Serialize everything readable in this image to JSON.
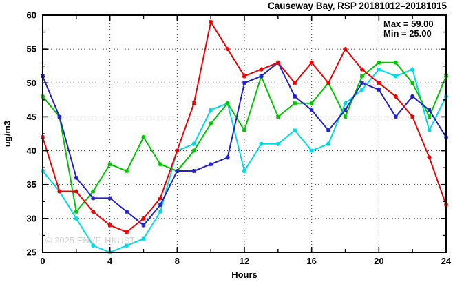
{
  "title": "Causeway Bay, RSP 20181012–20181015",
  "annotations": {
    "max_label": "Max = 59.00",
    "min_label": "Min = 25.00"
  },
  "watermark": "© 2025 ENVF, HKUST",
  "chart_data": {
    "type": "line",
    "title": "Causeway Bay, RSP 20181012–20181015",
    "xlabel": "Hours",
    "ylabel": "ug/m3",
    "xlim": [
      0,
      24
    ],
    "ylim": [
      25,
      60
    ],
    "x_major_ticks": [
      0,
      4,
      8,
      12,
      16,
      20,
      24
    ],
    "x_minor_ticks": [
      2,
      6,
      10,
      14,
      18,
      22
    ],
    "y_major_ticks": [
      25,
      30,
      35,
      40,
      45,
      50,
      55,
      60
    ],
    "y_minor_ticks": [
      27.5,
      32.5,
      37.5,
      42.5,
      47.5,
      52.5,
      57.5
    ],
    "x_gridlines": [
      4,
      8,
      12,
      16,
      20
    ],
    "y_gridlines": [
      30,
      35,
      40,
      45,
      50,
      55
    ],
    "grid": true,
    "legend_position": "top-right-inside",
    "stat_max": 59.0,
    "stat_min": 25.0,
    "x": [
      0,
      1,
      2,
      3,
      4,
      5,
      6,
      7,
      8,
      9,
      10,
      11,
      12,
      13,
      14,
      15,
      16,
      17,
      18,
      19,
      20,
      21,
      22,
      23,
      24
    ],
    "series": [
      {
        "name": "series-cyan",
        "color": "#00d9e8",
        "values": [
          37,
          34,
          30,
          26,
          25,
          26,
          27,
          31,
          40,
          41,
          46,
          47,
          37,
          41,
          41,
          43,
          40,
          41,
          47,
          49,
          52,
          51,
          52,
          43,
          48
        ]
      },
      {
        "name": "series-green",
        "color": "#00c400",
        "values": [
          48,
          45,
          31,
          34,
          38,
          37,
          42,
          38,
          37,
          40,
          44,
          47,
          43,
          51,
          45,
          47,
          47,
          50,
          45,
          51,
          53,
          53,
          50,
          45,
          51
        ]
      },
      {
        "name": "series-blue",
        "color": "#2222cc",
        "values": [
          51,
          45,
          36,
          33,
          33,
          31,
          29,
          32,
          37,
          37,
          38,
          39,
          50,
          51,
          53,
          48,
          46,
          43,
          46,
          50,
          49,
          45,
          48,
          46,
          42
        ]
      },
      {
        "name": "series-red",
        "color": "#ee0000",
        "values": [
          42,
          34,
          34,
          31,
          29,
          28,
          30,
          33,
          40,
          47,
          59,
          55,
          51,
          52,
          53,
          50,
          53,
          50,
          55,
          52,
          50,
          48,
          45,
          39,
          32
        ]
      }
    ]
  }
}
